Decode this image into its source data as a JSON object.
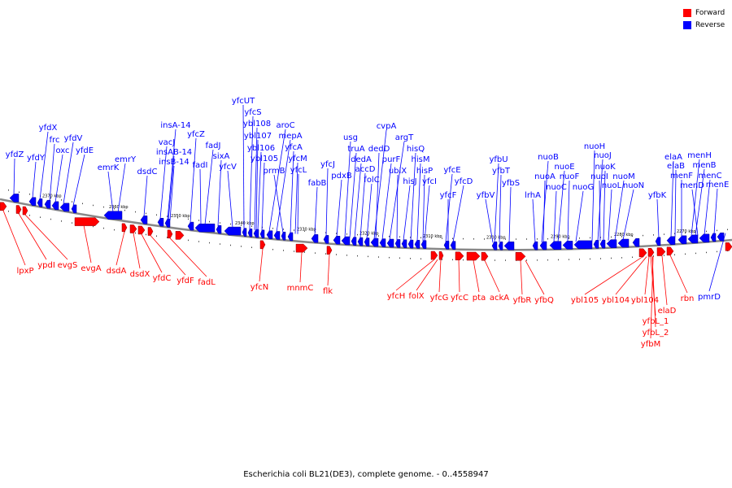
{
  "legend": {
    "forward_label": "Forward",
    "reverse_label": "Reverse",
    "forward_color": "#ff0000",
    "reverse_color": "#0000ff"
  },
  "caption": "Escherichia coli BL21(DE3), complete genome. - 0..4558947",
  "scale_labels": [
    "2370 kbp",
    "2360 kbp",
    "2350 kbp",
    "2340 kbp",
    "2330 kbp",
    "2320 kbp",
    "2310 kbp",
    "2300 kbp",
    "2290 kbp",
    "2280 kbp",
    "2270 kbp"
  ],
  "reverse_genes": [
    "yfdZ",
    "yfdY",
    "yfdX",
    "frc",
    "oxc",
    "yfdV",
    "yfdE",
    "emrK",
    "emrY",
    "dsdC",
    "vacJ",
    "insA-14",
    "insAB-14",
    "insB-14",
    "yfcZ",
    "fadI",
    "fadJ",
    "sixA",
    "yfcV",
    "yfcUT",
    "yfcS",
    "ybl108",
    "ybl107",
    "ybl106",
    "ybl105",
    "aroC",
    "mepA",
    "prmB",
    "yfcA",
    "yfcM",
    "yfcL",
    "fabB",
    "yfcJ",
    "pdxB",
    "usg",
    "truA",
    "dedA",
    "accD",
    "folC",
    "cvpA",
    "dedD",
    "purF",
    "argT",
    "ubiX",
    "hisJ",
    "hisQ",
    "hisM",
    "hisP",
    "yfcI",
    "yfcE",
    "yfcF",
    "yfcD",
    "yfbV",
    "yfbU",
    "yfbT",
    "yfbS",
    "lrhA",
    "nuoB",
    "nuoA",
    "nuoC",
    "nuoE",
    "nuoF",
    "nuoG",
    "nuoH",
    "nuoJ",
    "nuoI",
    "nuoK",
    "nuoL",
    "nuoM",
    "nuoN",
    "yfbK",
    "elaA",
    "elaB",
    "menF",
    "menH",
    "menB",
    "menD",
    "menC",
    "menE",
    "pmrD"
  ],
  "forward_genes": [
    "lpxP",
    "ypdI",
    "evgS",
    "evgA",
    "dsdA",
    "dsdX",
    "yfdC",
    "yfdF",
    "fadL",
    "yfcN",
    "mnmC",
    "flk",
    "yfcH",
    "folX",
    "yfcG",
    "yfcC",
    "pta",
    "ackA",
    "yfbR",
    "yfbQ",
    "ybl105",
    "ybl104",
    "ybl104",
    "yfbL_1",
    "yfbL_2",
    "yfbM",
    "elaD",
    "rbn"
  ]
}
